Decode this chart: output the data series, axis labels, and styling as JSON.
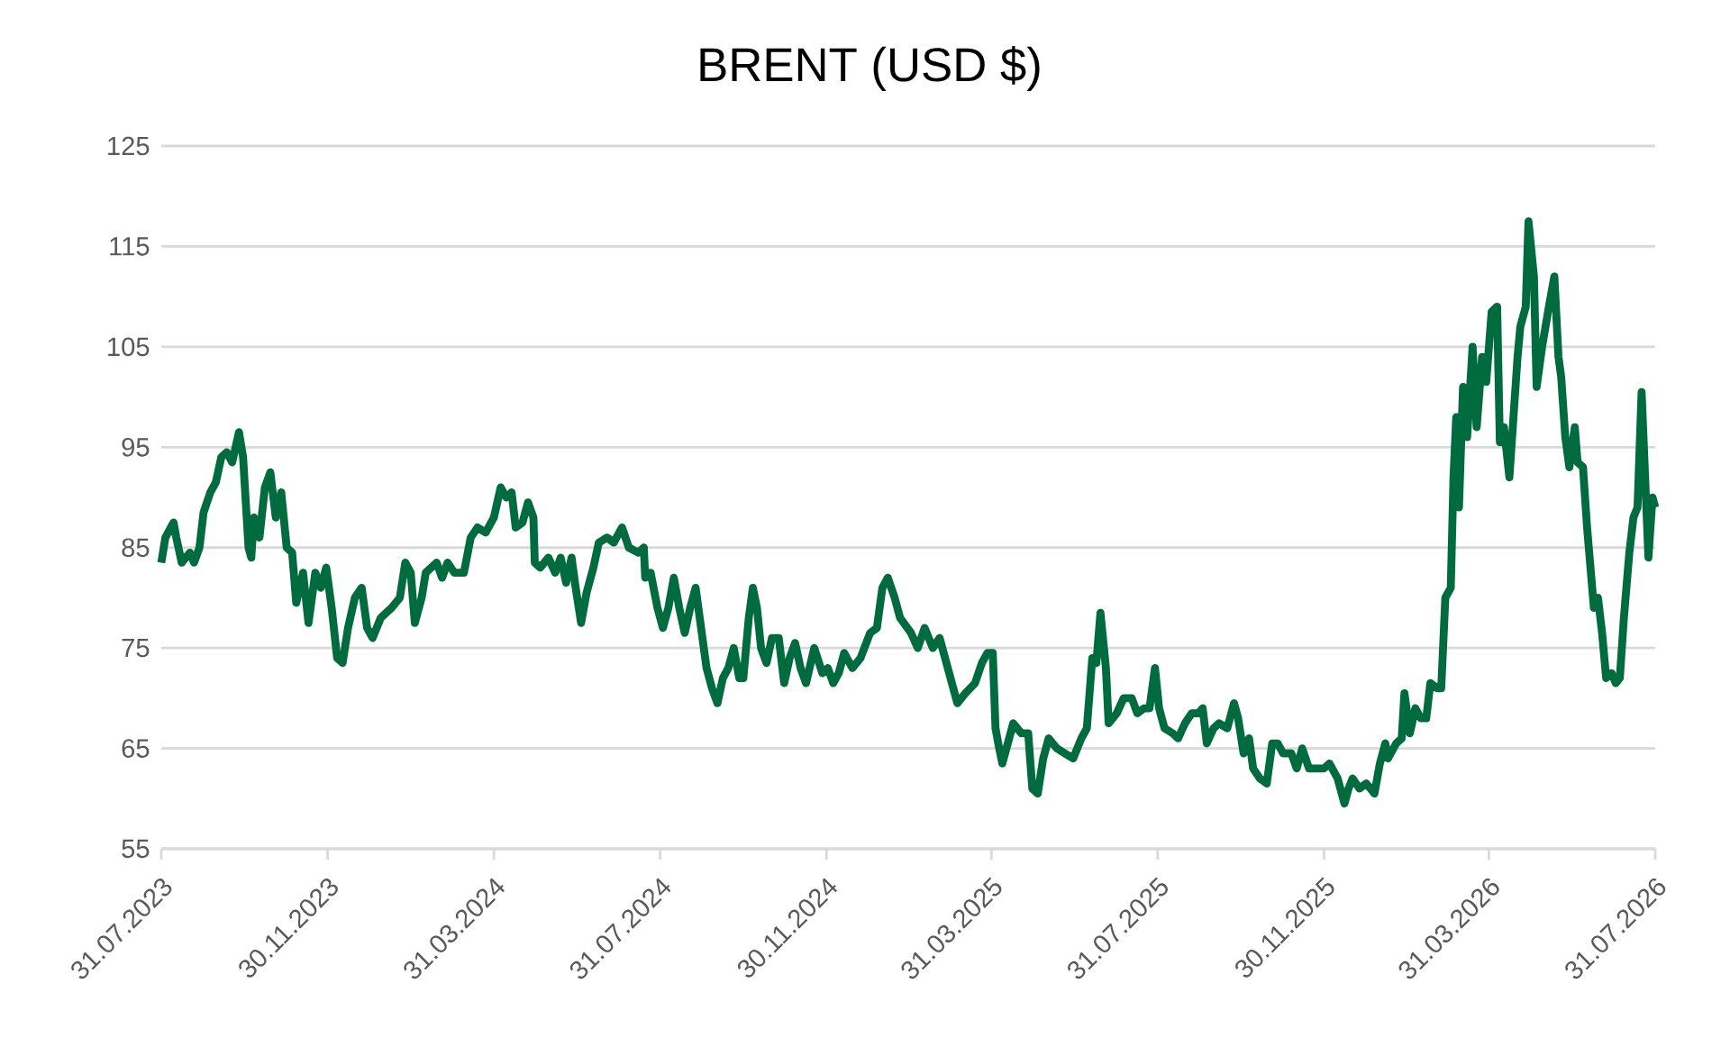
{
  "chart_data": {
    "type": "line",
    "title": "BRENT (USD $)",
    "color": "#006b3f",
    "grid": "y",
    "xlim": [
      "2023-07-31",
      "2026-07-31"
    ],
    "xticks": [
      {
        "value": "2023-07-31",
        "label": "31.07.2023"
      },
      {
        "value": "2023-11-30",
        "label": "30.11.2023"
      },
      {
        "value": "2024-03-31",
        "label": "31.03.2024"
      },
      {
        "value": "2024-07-31",
        "label": "31.07.2024"
      },
      {
        "value": "2024-11-30",
        "label": "30.11.2024"
      },
      {
        "value": "2025-03-31",
        "label": "31.03.2025"
      },
      {
        "value": "2025-07-31",
        "label": "31.07.2025"
      },
      {
        "value": "2025-11-30",
        "label": "30.11.2025"
      },
      {
        "value": "2026-03-31",
        "label": "31.03.2026"
      },
      {
        "value": "2026-07-31",
        "label": "31.07.2026"
      }
    ],
    "ylim": [
      55,
      125
    ],
    "yticks": [
      55,
      65,
      75,
      85,
      95,
      105,
      115,
      125
    ],
    "x": [
      "2023-07-31",
      "2023-08-03",
      "2023-08-09",
      "2023-08-11",
      "2023-08-15",
      "2023-08-21",
      "2023-08-24",
      "2023-08-28",
      "2023-08-31",
      "2023-09-05",
      "2023-09-09",
      "2023-09-13",
      "2023-09-17",
      "2023-09-21",
      "2023-09-26",
      "2023-09-29",
      "2023-10-03",
      "2023-10-05",
      "2023-10-07",
      "2023-10-11",
      "2023-10-15",
      "2023-10-19",
      "2023-10-23",
      "2023-10-27",
      "2023-10-31",
      "2023-11-04",
      "2023-11-07",
      "2023-11-12",
      "2023-11-16",
      "2023-11-21",
      "2023-11-25",
      "2023-11-29",
      "2023-12-03",
      "2023-12-07",
      "2023-12-11",
      "2023-12-15",
      "2023-12-20",
      "2023-12-25",
      "2023-12-29",
      "2024-01-02",
      "2024-01-08",
      "2024-01-16",
      "2024-01-22",
      "2024-01-26",
      "2024-01-30",
      "2024-02-02",
      "2024-02-07",
      "2024-02-10",
      "2024-02-18",
      "2024-02-22",
      "2024-02-26",
      "2024-03-02",
      "2024-03-09",
      "2024-03-14",
      "2024-03-19",
      "2024-03-25",
      "2024-03-31",
      "2024-04-05",
      "2024-04-09",
      "2024-04-13",
      "2024-04-16",
      "2024-04-21",
      "2024-04-25",
      "2024-04-29",
      "2024-04-30",
      "2024-05-04",
      "2024-05-10",
      "2024-05-15",
      "2024-05-19",
      "2024-05-23",
      "2024-05-27",
      "2024-05-30",
      "2024-06-03",
      "2024-06-07",
      "2024-06-12",
      "2024-06-16",
      "2024-06-22",
      "2024-06-27",
      "2024-07-03",
      "2024-07-08",
      "2024-07-15",
      "2024-07-19",
      "2024-07-20",
      "2024-07-24",
      "2024-07-29",
      "2024-08-02",
      "2024-08-06",
      "2024-08-10",
      "2024-08-14",
      "2024-08-18",
      "2024-08-22",
      "2024-08-26",
      "2024-08-30",
      "2024-09-03",
      "2024-09-07",
      "2024-09-11",
      "2024-09-15",
      "2024-09-19",
      "2024-09-23",
      "2024-09-27",
      "2024-09-30",
      "2024-10-04",
      "2024-10-07",
      "2024-10-10",
      "2024-10-13",
      "2024-10-17",
      "2024-10-21",
      "2024-10-26",
      "2024-10-30",
      "2024-11-03",
      "2024-11-07",
      "2024-11-11",
      "2024-11-15",
      "2024-11-21",
      "2024-11-27",
      "2024-12-01",
      "2024-12-05",
      "2024-12-09",
      "2024-12-13",
      "2024-12-19",
      "2024-12-25",
      "2025-01-01",
      "2025-01-06",
      "2025-01-10",
      "2025-01-14",
      "2025-01-19",
      "2025-01-23",
      "2025-01-31",
      "2025-02-05",
      "2025-02-10",
      "2025-02-16",
      "2025-02-21",
      "2025-02-26",
      "2025-03-03",
      "2025-03-06",
      "2025-03-12",
      "2025-03-19",
      "2025-03-24",
      "2025-03-28",
      "2025-04-01",
      "2025-04-03",
      "2025-04-05",
      "2025-04-08",
      "2025-04-12",
      "2025-04-16",
      "2025-04-22",
      "2025-04-27",
      "2025-04-30",
      "2025-05-04",
      "2025-05-08",
      "2025-05-12",
      "2025-05-18",
      "2025-05-24",
      "2025-05-30",
      "2025-06-05",
      "2025-06-09",
      "2025-06-13",
      "2025-06-16",
      "2025-06-19",
      "2025-06-23",
      "2025-06-25",
      "2025-07-01",
      "2025-07-06",
      "2025-07-12",
      "2025-07-16",
      "2025-07-21",
      "2025-07-25",
      "2025-07-29",
      "2025-08-01",
      "2025-08-05",
      "2025-08-11",
      "2025-08-15",
      "2025-08-20",
      "2025-08-25",
      "2025-08-30",
      "2025-09-02",
      "2025-09-05",
      "2025-09-10",
      "2025-09-14",
      "2025-09-20",
      "2025-09-25",
      "2025-09-28",
      "2025-10-02",
      "2025-10-06",
      "2025-10-09",
      "2025-10-14",
      "2025-10-19",
      "2025-10-23",
      "2025-10-27",
      "2025-10-31",
      "2025-11-06",
      "2025-11-10",
      "2025-11-14",
      "2025-11-19",
      "2025-11-24",
      "2025-11-30",
      "2025-12-04",
      "2025-12-10",
      "2025-12-15",
      "2025-12-18",
      "2025-12-21",
      "2025-12-26",
      "2025-12-31",
      "2026-01-06",
      "2026-01-10",
      "2026-01-14",
      "2026-01-16",
      "2026-01-22",
      "2026-01-26",
      "2026-01-28",
      "2026-02-01",
      "2026-02-05",
      "2026-02-09",
      "2026-02-13",
      "2026-02-16",
      "2026-02-21",
      "2026-02-24",
      "2026-02-27",
      "2026-03-03",
      "2026-03-05",
      "2026-03-07",
      "2026-03-09",
      "2026-03-12",
      "2026-03-15",
      "2026-03-19",
      "2026-03-22",
      "2026-03-26",
      "2026-03-29",
      "2026-04-02",
      "2026-04-06",
      "2026-04-08",
      "2026-04-11",
      "2026-04-15",
      "2026-04-21",
      "2026-04-23",
      "2026-04-27",
      "2026-04-29",
      "2026-05-03",
      "2026-05-05",
      "2026-05-09",
      "2026-05-14",
      "2026-05-18",
      "2026-05-21",
      "2026-05-23",
      "2026-05-26",
      "2026-05-29",
      "2026-06-02",
      "2026-06-04",
      "2026-06-08",
      "2026-06-11",
      "2026-06-16",
      "2026-06-19",
      "2026-06-22",
      "2026-06-25",
      "2026-06-29",
      "2026-07-02",
      "2026-07-05",
      "2026-07-08",
      "2026-07-12",
      "2026-07-15",
      "2026-07-18",
      "2026-07-21",
      "2026-07-26",
      "2026-07-29",
      "2026-07-31"
    ],
    "values": [
      83.5,
      86,
      87.5,
      86,
      83.5,
      84.5,
      83.5,
      85,
      88.5,
      90.5,
      91.5,
      94,
      94.5,
      93.5,
      96.5,
      94,
      85,
      84,
      88,
      86,
      91,
      92.5,
      88,
      90.5,
      85,
      84.5,
      79.5,
      82.5,
      77.5,
      82.5,
      81,
      83,
      79,
      74,
      73.5,
      77,
      80,
      81,
      77,
      76,
      78,
      79,
      80,
      83.5,
      82.5,
      77.5,
      80,
      82.5,
      83.5,
      82,
      83.5,
      82.5,
      82.5,
      86,
      87,
      86.5,
      88,
      91,
      90,
      90.5,
      87,
      87.5,
      89.5,
      88,
      83.5,
      83,
      84,
      82.5,
      84,
      81.5,
      84,
      81,
      77.5,
      80.5,
      83,
      85.5,
      86,
      85.5,
      87,
      85,
      84.5,
      85,
      82,
      82.5,
      79,
      77,
      79,
      82,
      79,
      76.5,
      79,
      81,
      77,
      73,
      71,
      69.5,
      72,
      73,
      75,
      72,
      72,
      78,
      81,
      79,
      75,
      73.5,
      76,
      76,
      71.5,
      74,
      75.5,
      73,
      71.5,
      75,
      72.5,
      73,
      71.5,
      72.5,
      74.5,
      73,
      74,
      76.5,
      77,
      81,
      82,
      80,
      78,
      76.5,
      75,
      77,
      75,
      76,
      73.5,
      71,
      69.5,
      70.5,
      71.5,
      73.5,
      74.5,
      74.5,
      67,
      65.5,
      63.5,
      65.5,
      67.5,
      66.5,
      66.5,
      61,
      60.5,
      64,
      66,
      65,
      64.5,
      64,
      66,
      67,
      74,
      73.5,
      78.5,
      73,
      67.5,
      68.5,
      70,
      70,
      68.5,
      69,
      69,
      73,
      69,
      67,
      66.5,
      66,
      67.5,
      68.5,
      68.5,
      69,
      65.5,
      67,
      67.5,
      67,
      69.5,
      68,
      64.5,
      66,
      63,
      62,
      61.5,
      65.5,
      65.5,
      64.5,
      64.5,
      63,
      65,
      63,
      63,
      63,
      63.5,
      62,
      59.5,
      61,
      62,
      61,
      61.5,
      60.5,
      63.5,
      65.5,
      64,
      65.5,
      66,
      70.5,
      66.5,
      69,
      68,
      68,
      71.5,
      71,
      71,
      80,
      81,
      92,
      98,
      89,
      101,
      96,
      105,
      97,
      104,
      101.5,
      108.5,
      109,
      95.5,
      97,
      92,
      104,
      107,
      109,
      117.5,
      112,
      101,
      105,
      109,
      112,
      104,
      102,
      96,
      93,
      97,
      93.5,
      93,
      87,
      79,
      80,
      76.5,
      72,
      72.5,
      71.5,
      72,
      78,
      84.5,
      88,
      89,
      100.5,
      84,
      90,
      89
    ]
  }
}
